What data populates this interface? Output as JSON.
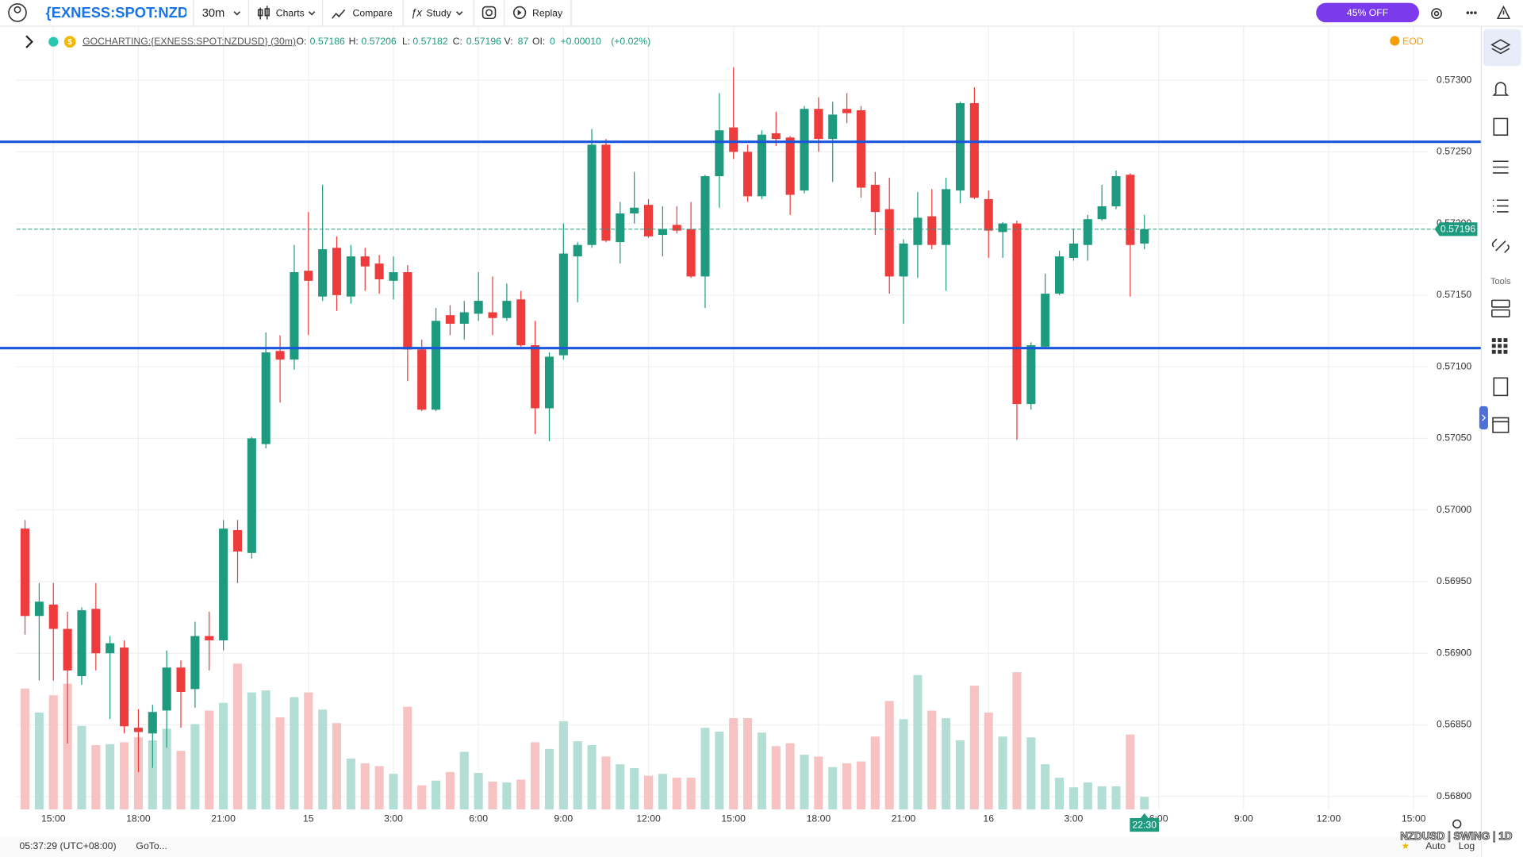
{
  "toolbar": {
    "symbol": "{EXNESS:SPOT:NZDUSD}",
    "interval": "30m",
    "menus": [
      "Charts",
      "Compare",
      "Study",
      "Replay"
    ],
    "promo": "45% OFF"
  },
  "legend": {
    "source": "GOCHARTING:{EXNESS:SPOT:NZDUSD} (30m)",
    "items": [
      {
        "label": "O:",
        "value": "0.57186"
      },
      {
        "label": "H:",
        "value": "0.57206"
      },
      {
        "label": "L:",
        "value": "0.57182"
      },
      {
        "label": "C:",
        "value": "0.57196"
      },
      {
        "label": "V:",
        "value": "87"
      },
      {
        "label": "OI:",
        "value": "0"
      }
    ],
    "change": "+0.00010",
    "change_pct": "(+0.02%)",
    "eod": "EOD"
  },
  "sidebar": {
    "tools": "Tools"
  },
  "status": {
    "clock": "05:37:29 (UTC+08:00)",
    "goto": "GoTo...",
    "preset": "NZDUSD | SWING | 1D",
    "auto": "Auto",
    "log": "Log"
  },
  "chart_data": {
    "type": "candlestick",
    "open": [
      0.56987,
      0.56926,
      0.56934,
      0.56917,
      0.56884,
      0.56931,
      0.569,
      0.56904,
      0.56848,
      0.56844,
      0.5686,
      0.5689,
      0.56875,
      0.56912,
      0.56909,
      0.56986,
      0.5697,
      0.57046,
      0.57111,
      0.57105,
      0.57167,
      0.57149,
      0.57183,
      0.57149,
      0.57177,
      0.57172,
      0.5716,
      0.57166,
      0.57112,
      0.5707,
      0.57136,
      0.5713,
      0.57137,
      0.57138,
      0.57134,
      0.57147,
      0.57115,
      0.57071,
      0.57108,
      0.57177,
      0.57185,
      0.57255,
      0.57187,
      0.57207,
      0.57213,
      0.57192,
      0.57199,
      0.57196,
      0.57163,
      0.57233,
      0.57267,
      0.5725,
      0.57219,
      0.57263,
      0.5726,
      0.57223,
      0.5728,
      0.57259,
      0.5728,
      0.57279,
      0.57227,
      0.5721,
      0.57163,
      0.57185,
      0.57205,
      0.57185,
      0.57223,
      0.57284,
      0.57217,
      0.57194,
      0.572,
      0.57074,
      0.57114,
      0.57151,
      0.57176,
      0.57185,
      0.57203,
      0.57212,
      0.57234,
      0.57186
    ],
    "high": [
      0.56993,
      0.56949,
      0.56949,
      0.56929,
      0.56932,
      0.56949,
      0.56912,
      0.56909,
      0.56861,
      0.56864,
      0.56902,
      0.56895,
      0.56922,
      0.56929,
      0.56993,
      0.56993,
      0.57051,
      0.57124,
      0.57122,
      0.57185,
      0.57208,
      0.57227,
      0.57191,
      0.57185,
      0.57183,
      0.57178,
      0.57177,
      0.57171,
      0.57119,
      0.57141,
      0.57143,
      0.57146,
      0.57166,
      0.57163,
      0.57158,
      0.57153,
      0.57132,
      0.5711,
      0.572,
      0.57187,
      0.57266,
      0.57259,
      0.57215,
      0.57236,
      0.57217,
      0.57212,
      0.57212,
      0.57215,
      0.57234,
      0.57291,
      0.57309,
      0.57255,
      0.57265,
      0.57278,
      0.57261,
      0.57282,
      0.57288,
      0.57285,
      0.57291,
      0.57282,
      0.57236,
      0.57232,
      0.57189,
      0.57222,
      0.57224,
      0.57232,
      0.57285,
      0.57295,
      0.57223,
      0.57201,
      0.57202,
      0.57117,
      0.57165,
      0.57181,
      0.57196,
      0.57206,
      0.57227,
      0.57237,
      0.57235,
      0.57206
    ],
    "low": [
      0.56913,
      0.56881,
      0.56881,
      0.56837,
      0.56878,
      0.56888,
      0.56854,
      0.56844,
      0.56817,
      0.5682,
      0.56834,
      0.56848,
      0.56862,
      0.56888,
      0.56902,
      0.56949,
      0.56966,
      0.57043,
      0.57075,
      0.57098,
      0.57122,
      0.57146,
      0.57139,
      0.57144,
      0.57153,
      0.57151,
      0.57147,
      0.5709,
      0.57069,
      0.57069,
      0.57122,
      0.57119,
      0.57132,
      0.57122,
      0.57132,
      0.57114,
      0.57053,
      0.57048,
      0.57105,
      0.57145,
      0.57183,
      0.57187,
      0.57172,
      0.572,
      0.5719,
      0.57177,
      0.57193,
      0.57162,
      0.57141,
      0.57211,
      0.57245,
      0.57215,
      0.57217,
      0.57254,
      0.57206,
      0.57221,
      0.5725,
      0.57229,
      0.5727,
      0.57218,
      0.57192,
      0.57151,
      0.5713,
      0.57162,
      0.57182,
      0.57153,
      0.57214,
      0.57217,
      0.57176,
      0.57176,
      0.57049,
      0.5707,
      0.57113,
      0.5715,
      0.57174,
      0.57174,
      0.57202,
      0.5721,
      0.57149,
      0.57182
    ],
    "close": [
      0.56926,
      0.56936,
      0.56917,
      0.56888,
      0.5693,
      0.569,
      0.56907,
      0.56849,
      0.56845,
      0.56859,
      0.5689,
      0.56873,
      0.56912,
      0.56909,
      0.56987,
      0.56971,
      0.5705,
      0.5711,
      0.57105,
      0.57166,
      0.5716,
      0.57182,
      0.5715,
      0.57177,
      0.5717,
      0.57161,
      0.57166,
      0.57112,
      0.5707,
      0.57132,
      0.5713,
      0.57138,
      0.57146,
      0.57134,
      0.57146,
      0.57115,
      0.57071,
      0.57107,
      0.57179,
      0.57185,
      0.57255,
      0.57188,
      0.57207,
      0.57211,
      0.57191,
      0.57196,
      0.57195,
      0.57163,
      0.57233,
      0.57265,
      0.5725,
      0.57219,
      0.57262,
      0.57259,
      0.5722,
      0.5728,
      0.57259,
      0.57276,
      0.57277,
      0.57225,
      0.57208,
      0.57163,
      0.57186,
      0.57204,
      0.57185,
      0.57224,
      0.57284,
      0.57218,
      0.57195,
      0.572,
      0.57074,
      0.57115,
      0.57151,
      0.57177,
      0.57186,
      0.57203,
      0.57212,
      0.57233,
      0.57185,
      0.57196
    ],
    "volume": [
      844,
      677,
      797,
      878,
      583,
      449,
      456,
      469,
      503,
      482,
      563,
      409,
      596,
      690,
      744,
      1018,
      817,
      831,
      643,
      784,
      817,
      697,
      603,
      355,
      322,
      302,
      248,
      717,
      168,
      201,
      261,
      402,
      255,
      194,
      188,
      208,
      469,
      422,
      616,
      476,
      449,
      369,
      315,
      288,
      235,
      248,
      221,
      221,
      570,
      543,
      637,
      637,
      536,
      442,
      462,
      382,
      369,
      295,
      322,
      335,
      509,
      757,
      630,
      938,
      690,
      637,
      482,
      864,
      677,
      509,
      958,
      503,
      315,
      221,
      154,
      188,
      161,
      161,
      523,
      87
    ],
    "colors": {
      "up": "#1e9a7e",
      "down": "#ee3b3b",
      "up_volume": "#b3ded5",
      "down_volume": "#f6c2c2",
      "level": "#1a56db"
    },
    "levels": [
      0.57257,
      0.57113
    ],
    "current_time_label": "22:30",
    "xlim": [
      -0.6,
      99
    ],
    "xticks": [
      {
        "value": 2,
        "label": "15:00"
      },
      {
        "value": 8,
        "label": "18:00"
      },
      {
        "value": 14,
        "label": "21:00"
      },
      {
        "value": 20,
        "label": "15"
      },
      {
        "value": 26,
        "label": "3:00"
      },
      {
        "value": 32,
        "label": "6:00"
      },
      {
        "value": 38,
        "label": "9:00"
      },
      {
        "value": 44,
        "label": "12:00"
      },
      {
        "value": 50,
        "label": "15:00"
      },
      {
        "value": 56,
        "label": "18:00"
      },
      {
        "value": 62,
        "label": "21:00"
      },
      {
        "value": 68,
        "label": "16"
      },
      {
        "value": 74,
        "label": "3:00"
      },
      {
        "value": 80,
        "label": "6:00"
      },
      {
        "value": 86,
        "label": "9:00"
      },
      {
        "value": 92,
        "label": "12:00"
      },
      {
        "value": 98,
        "label": "15:00"
      }
    ],
    "ylim": [
      0.56791,
      0.57337
    ],
    "yticks": [
      {
        "value": 0.573,
        "label": "0.57300"
      },
      {
        "value": 0.5725,
        "label": "0.57250"
      },
      {
        "value": 0.572,
        "label": "0.57200"
      },
      {
        "value": 0.5715,
        "label": "0.57150"
      },
      {
        "value": 0.571,
        "label": "0.57100"
      },
      {
        "value": 0.5705,
        "label": "0.57050"
      },
      {
        "value": 0.57,
        "label": "0.57000"
      },
      {
        "value": 0.5695,
        "label": "0.56950"
      },
      {
        "value": 0.569,
        "label": "0.56900"
      },
      {
        "value": 0.5685,
        "label": "0.56850"
      },
      {
        "value": 0.568,
        "label": "0.56800"
      }
    ],
    "grid": true
  }
}
